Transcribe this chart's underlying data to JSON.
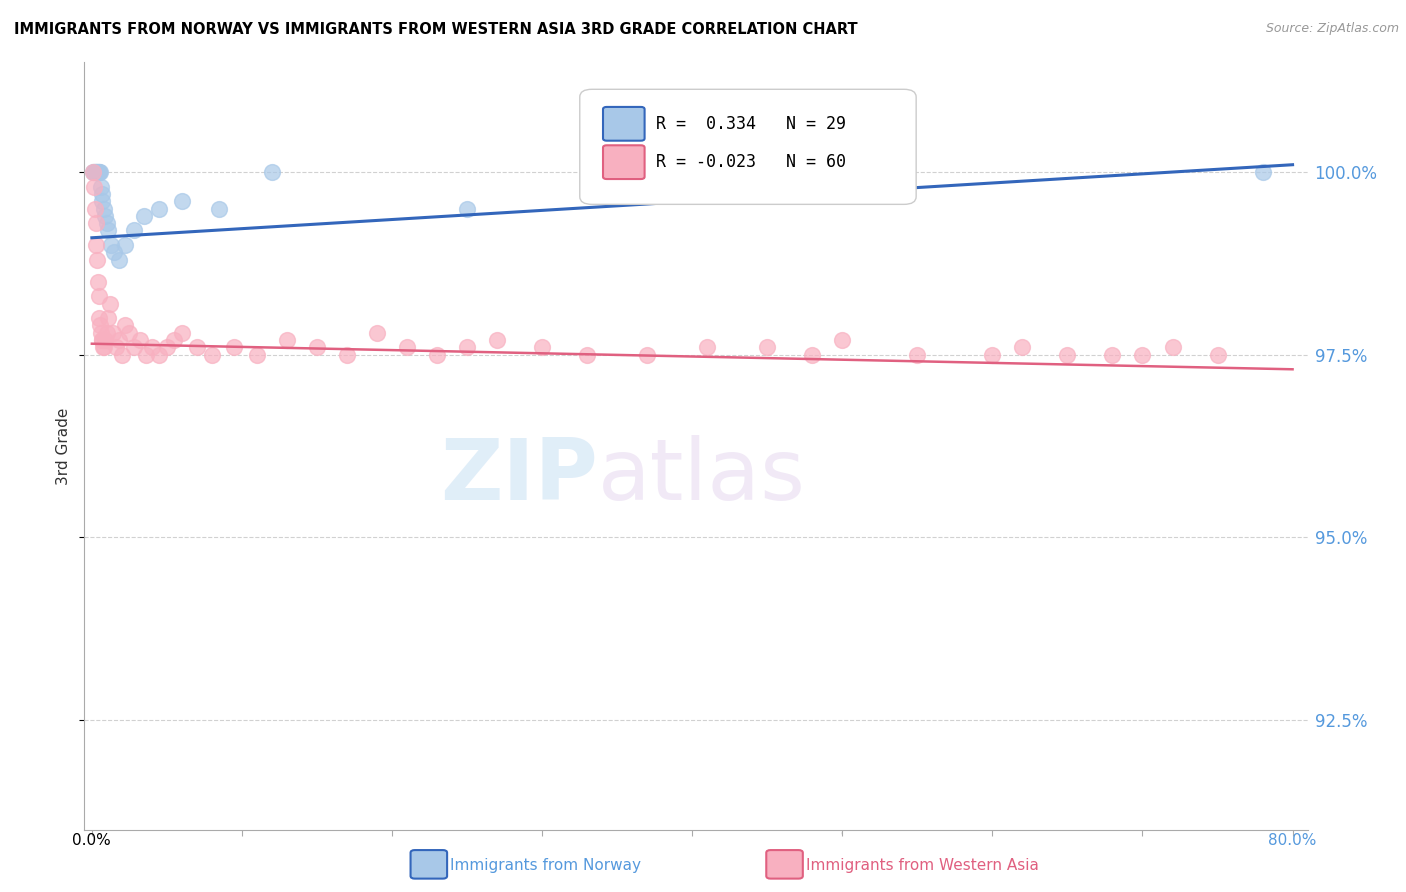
{
  "title": "IMMIGRANTS FROM NORWAY VS IMMIGRANTS FROM WESTERN ASIA 3RD GRADE CORRELATION CHART",
  "source": "Source: ZipAtlas.com",
  "ylabel": "3rd Grade",
  "legend_R_norway": " 0.334",
  "legend_N_norway": "29",
  "legend_R_western_asia": "-0.023",
  "legend_N_western_asia": "60",
  "norway_color": "#a8c8e8",
  "norway_edge_color": "#a8c8e8",
  "norway_line_color": "#3366bb",
  "western_asia_color": "#f8b0c0",
  "western_asia_edge_color": "#f8b0c0",
  "western_asia_line_color": "#e06080",
  "ylim_lo": 91.0,
  "ylim_hi": 101.5,
  "xlim_lo": -0.5,
  "xlim_hi": 81.0,
  "ytick_positions": [
    92.5,
    95.0,
    97.5,
    100.0
  ],
  "ytick_labels": [
    "92.5%",
    "95.0%",
    "97.5%",
    "100.0%"
  ],
  "norway_x": [
    0.1,
    0.15,
    0.2,
    0.25,
    0.3,
    0.35,
    0.4,
    0.45,
    0.5,
    0.55,
    0.6,
    0.65,
    0.7,
    0.8,
    0.9,
    1.0,
    1.1,
    1.3,
    1.5,
    1.8,
    2.2,
    2.8,
    3.5,
    4.5,
    6.0,
    8.5,
    12.0,
    25.0,
    78.0
  ],
  "norway_y": [
    100.0,
    100.0,
    100.0,
    100.0,
    100.0,
    100.0,
    100.0,
    100.0,
    100.0,
    100.0,
    99.8,
    99.7,
    99.6,
    99.5,
    99.4,
    99.3,
    99.2,
    99.0,
    98.9,
    98.8,
    99.0,
    99.2,
    99.4,
    99.5,
    99.6,
    99.5,
    100.0,
    99.5,
    100.0
  ],
  "western_asia_x": [
    0.1,
    0.15,
    0.2,
    0.25,
    0.3,
    0.35,
    0.4,
    0.45,
    0.5,
    0.55,
    0.6,
    0.65,
    0.7,
    0.75,
    0.8,
    0.9,
    1.0,
    1.1,
    1.2,
    1.4,
    1.6,
    1.8,
    2.0,
    2.2,
    2.5,
    2.8,
    3.2,
    3.6,
    4.0,
    4.5,
    5.0,
    5.5,
    6.0,
    7.0,
    8.0,
    9.5,
    11.0,
    13.0,
    15.0,
    17.0,
    19.0,
    21.0,
    23.0,
    25.0,
    27.0,
    30.0,
    33.0,
    37.0,
    41.0,
    45.0,
    48.0,
    50.0,
    55.0,
    60.0,
    62.0,
    65.0,
    68.0,
    70.0,
    72.0,
    75.0
  ],
  "western_asia_y": [
    100.0,
    99.8,
    99.5,
    99.3,
    99.0,
    98.8,
    98.5,
    98.3,
    98.0,
    97.9,
    97.8,
    97.7,
    97.7,
    97.6,
    97.6,
    97.7,
    97.8,
    98.0,
    98.2,
    97.8,
    97.6,
    97.7,
    97.5,
    97.9,
    97.8,
    97.6,
    97.7,
    97.5,
    97.6,
    97.5,
    97.6,
    97.7,
    97.8,
    97.6,
    97.5,
    97.6,
    97.5,
    97.7,
    97.6,
    97.5,
    97.8,
    97.6,
    97.5,
    97.6,
    97.7,
    97.6,
    97.5,
    97.5,
    97.6,
    97.6,
    97.5,
    97.7,
    97.5,
    97.5,
    97.6,
    97.5,
    97.5,
    97.5,
    97.6,
    97.5
  ]
}
